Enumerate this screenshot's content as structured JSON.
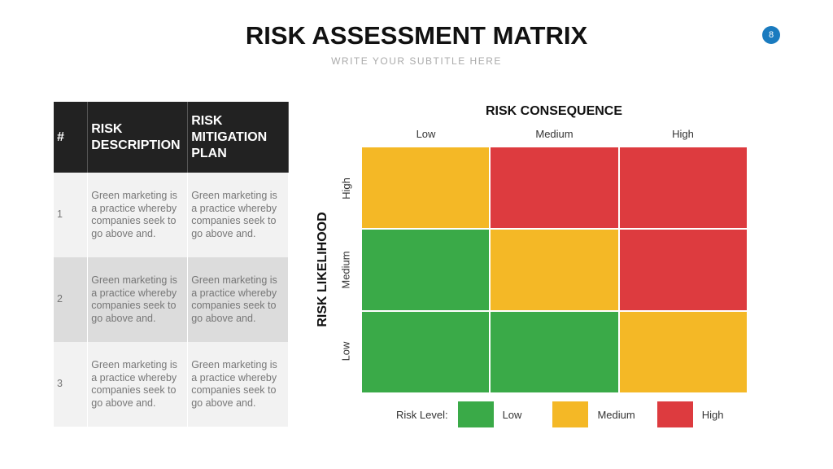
{
  "title": "RISK ASSESSMENT MATRIX",
  "subtitle": "WRITE YOUR SUBTITLE HERE",
  "page_number": "8",
  "colors": {
    "low": "#3aaa48",
    "medium": "#f4b826",
    "high": "#dd3b3f",
    "page_badge": "#1a7bbf"
  },
  "table": {
    "headers": [
      "#",
      "RISK DESCRIPTION",
      "RISK MITIGATION PLAN"
    ],
    "rows": [
      {
        "num": "1",
        "description": "Green marketing is a practice whereby companies seek to go above and.",
        "plan": "Green marketing is a practice whereby companies seek to go above and."
      },
      {
        "num": "2",
        "description": "Green marketing is a practice whereby companies seek to go above and.",
        "plan": "Green marketing is a practice whereby companies seek to go above and."
      },
      {
        "num": "3",
        "description": "Green marketing is a practice whereby companies seek to go above and.",
        "plan": "Green marketing is a practice whereby companies seek to go above and."
      }
    ]
  },
  "matrix": {
    "x_title": "RISK CONSEQUENCE",
    "y_title": "RISK LIKELIHOOD",
    "columns": [
      "Low",
      "Medium",
      "High"
    ],
    "rows": [
      "High",
      "Medium",
      "Low"
    ],
    "cells": [
      [
        "medium",
        "high",
        "high"
      ],
      [
        "low",
        "medium",
        "high"
      ],
      [
        "low",
        "low",
        "medium"
      ]
    ]
  },
  "legend": {
    "label": "Risk Level:",
    "items": [
      {
        "key": "low",
        "label": "Low"
      },
      {
        "key": "medium",
        "label": "Medium"
      },
      {
        "key": "high",
        "label": "High"
      }
    ]
  }
}
